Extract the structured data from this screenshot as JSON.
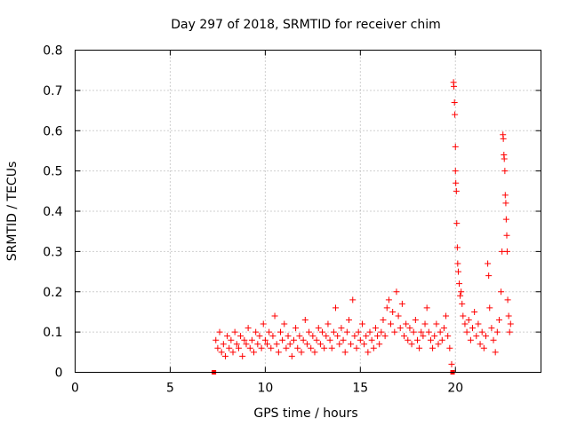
{
  "chart_data": {
    "type": "scatter",
    "title": "Day 297 of 2018, SRMTID for receiver chim",
    "xlabel": "GPS time / hours",
    "ylabel": "SRMTID / TECUs",
    "xlim": [
      0,
      24.5
    ],
    "ylim": [
      0,
      0.8
    ],
    "xticks": [
      0,
      5,
      10,
      15,
      20
    ],
    "yticks": [
      0,
      0.1,
      0.2,
      0.3,
      0.4,
      0.5,
      0.6,
      0.7,
      0.8
    ],
    "xtick_labels": [
      "0",
      "5",
      "10",
      "15",
      "20"
    ],
    "ytick_labels": [
      "0",
      "0.1",
      "0.2",
      "0.3",
      "0.4",
      "0.5",
      "0.6",
      "0.7",
      "0.8"
    ],
    "grid": true,
    "marker": "+",
    "series": [
      {
        "name": "SRMTID",
        "color": "#ff0000",
        "points": [
          [
            7.3,
            0.0
          ],
          [
            7.4,
            0.08
          ],
          [
            7.5,
            0.06
          ],
          [
            7.6,
            0.1
          ],
          [
            7.7,
            0.05
          ],
          [
            7.8,
            0.07
          ],
          [
            7.9,
            0.04
          ],
          [
            8.0,
            0.09
          ],
          [
            8.1,
            0.06
          ],
          [
            8.2,
            0.08
          ],
          [
            8.3,
            0.05
          ],
          [
            8.4,
            0.1
          ],
          [
            8.5,
            0.07
          ],
          [
            8.6,
            0.06
          ],
          [
            8.7,
            0.09
          ],
          [
            8.8,
            0.04
          ],
          [
            8.9,
            0.08
          ],
          [
            9.0,
            0.07
          ],
          [
            9.1,
            0.11
          ],
          [
            9.2,
            0.06
          ],
          [
            9.3,
            0.08
          ],
          [
            9.4,
            0.05
          ],
          [
            9.5,
            0.1
          ],
          [
            9.6,
            0.07
          ],
          [
            9.7,
            0.09
          ],
          [
            9.8,
            0.06
          ],
          [
            9.9,
            0.12
          ],
          [
            10.0,
            0.08
          ],
          [
            10.1,
            0.07
          ],
          [
            10.2,
            0.1
          ],
          [
            10.3,
            0.06
          ],
          [
            10.4,
            0.09
          ],
          [
            10.5,
            0.14
          ],
          [
            10.6,
            0.07
          ],
          [
            10.7,
            0.05
          ],
          [
            10.8,
            0.1
          ],
          [
            10.9,
            0.08
          ],
          [
            11.0,
            0.12
          ],
          [
            11.1,
            0.06
          ],
          [
            11.2,
            0.09
          ],
          [
            11.3,
            0.07
          ],
          [
            11.4,
            0.04
          ],
          [
            11.5,
            0.08
          ],
          [
            11.6,
            0.11
          ],
          [
            11.7,
            0.06
          ],
          [
            11.8,
            0.09
          ],
          [
            11.9,
            0.05
          ],
          [
            12.0,
            0.08
          ],
          [
            12.1,
            0.13
          ],
          [
            12.2,
            0.07
          ],
          [
            12.3,
            0.1
          ],
          [
            12.4,
            0.06
          ],
          [
            12.5,
            0.09
          ],
          [
            12.6,
            0.05
          ],
          [
            12.7,
            0.08
          ],
          [
            12.8,
            0.11
          ],
          [
            12.9,
            0.07
          ],
          [
            13.0,
            0.1
          ],
          [
            13.1,
            0.06
          ],
          [
            13.2,
            0.09
          ],
          [
            13.3,
            0.12
          ],
          [
            13.4,
            0.08
          ],
          [
            13.5,
            0.06
          ],
          [
            13.6,
            0.1
          ],
          [
            13.7,
            0.16
          ],
          [
            13.8,
            0.09
          ],
          [
            13.9,
            0.07
          ],
          [
            14.0,
            0.11
          ],
          [
            14.1,
            0.08
          ],
          [
            14.2,
            0.05
          ],
          [
            14.3,
            0.1
          ],
          [
            14.4,
            0.13
          ],
          [
            14.5,
            0.07
          ],
          [
            14.6,
            0.18
          ],
          [
            14.7,
            0.09
          ],
          [
            14.8,
            0.06
          ],
          [
            14.9,
            0.1
          ],
          [
            15.0,
            0.08
          ],
          [
            15.1,
            0.12
          ],
          [
            15.2,
            0.07
          ],
          [
            15.3,
            0.09
          ],
          [
            15.4,
            0.05
          ],
          [
            15.5,
            0.1
          ],
          [
            15.6,
            0.08
          ],
          [
            15.7,
            0.06
          ],
          [
            15.8,
            0.11
          ],
          [
            15.9,
            0.09
          ],
          [
            16.0,
            0.07
          ],
          [
            16.1,
            0.1
          ],
          [
            16.2,
            0.13
          ],
          [
            16.3,
            0.09
          ],
          [
            16.4,
            0.16
          ],
          [
            16.5,
            0.18
          ],
          [
            16.6,
            0.12
          ],
          [
            16.7,
            0.15
          ],
          [
            16.8,
            0.1
          ],
          [
            16.9,
            0.2
          ],
          [
            17.0,
            0.14
          ],
          [
            17.1,
            0.11
          ],
          [
            17.2,
            0.17
          ],
          [
            17.3,
            0.09
          ],
          [
            17.4,
            0.12
          ],
          [
            17.5,
            0.08
          ],
          [
            17.6,
            0.11
          ],
          [
            17.7,
            0.07
          ],
          [
            17.8,
            0.1
          ],
          [
            17.9,
            0.13
          ],
          [
            18.0,
            0.08
          ],
          [
            18.1,
            0.06
          ],
          [
            18.2,
            0.1
          ],
          [
            18.3,
            0.09
          ],
          [
            18.4,
            0.12
          ],
          [
            18.5,
            0.16
          ],
          [
            18.6,
            0.1
          ],
          [
            18.7,
            0.08
          ],
          [
            18.8,
            0.06
          ],
          [
            18.9,
            0.09
          ],
          [
            19.0,
            0.12
          ],
          [
            19.1,
            0.07
          ],
          [
            19.2,
            0.1
          ],
          [
            19.3,
            0.08
          ],
          [
            19.4,
            0.11
          ],
          [
            19.5,
            0.14
          ],
          [
            19.6,
            0.09
          ],
          [
            19.7,
            0.06
          ],
          [
            19.8,
            0.02
          ],
          [
            19.85,
            0.0
          ],
          [
            19.9,
            0.72
          ],
          [
            19.92,
            0.71
          ],
          [
            19.95,
            0.67
          ],
          [
            19.97,
            0.64
          ],
          [
            20.0,
            0.56
          ],
          [
            20.0,
            0.5
          ],
          [
            20.02,
            0.47
          ],
          [
            20.05,
            0.45
          ],
          [
            20.07,
            0.37
          ],
          [
            20.1,
            0.31
          ],
          [
            20.12,
            0.27
          ],
          [
            20.15,
            0.25
          ],
          [
            20.2,
            0.22
          ],
          [
            20.25,
            0.19
          ],
          [
            20.3,
            0.2
          ],
          [
            20.35,
            0.17
          ],
          [
            20.4,
            0.14
          ],
          [
            20.5,
            0.12
          ],
          [
            20.6,
            0.1
          ],
          [
            20.7,
            0.13
          ],
          [
            20.8,
            0.08
          ],
          [
            20.9,
            0.11
          ],
          [
            21.0,
            0.15
          ],
          [
            21.1,
            0.09
          ],
          [
            21.2,
            0.12
          ],
          [
            21.3,
            0.07
          ],
          [
            21.4,
            0.1
          ],
          [
            21.5,
            0.06
          ],
          [
            21.6,
            0.09
          ],
          [
            21.7,
            0.27
          ],
          [
            21.75,
            0.24
          ],
          [
            21.8,
            0.16
          ],
          [
            21.9,
            0.11
          ],
          [
            22.0,
            0.08
          ],
          [
            22.1,
            0.05
          ],
          [
            22.2,
            0.1
          ],
          [
            22.3,
            0.13
          ],
          [
            22.4,
            0.2
          ],
          [
            22.45,
            0.3
          ],
          [
            22.5,
            0.59
          ],
          [
            22.52,
            0.58
          ],
          [
            22.55,
            0.54
          ],
          [
            22.57,
            0.53
          ],
          [
            22.6,
            0.5
          ],
          [
            22.62,
            0.44
          ],
          [
            22.65,
            0.42
          ],
          [
            22.67,
            0.38
          ],
          [
            22.7,
            0.34
          ],
          [
            22.72,
            0.3
          ],
          [
            22.75,
            0.18
          ],
          [
            22.8,
            0.14
          ],
          [
            22.85,
            0.1
          ],
          [
            22.9,
            0.12
          ]
        ]
      }
    ]
  }
}
